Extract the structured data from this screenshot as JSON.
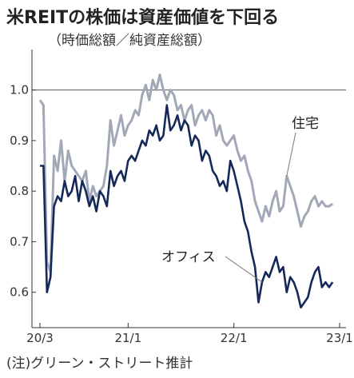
{
  "title": "米REITの株価は資産価値を下回る",
  "subtitle": "（時価総額／純資産総額）",
  "note": "(注)グリーン・ストリート推計",
  "chart_data": {
    "type": "line",
    "title": "米REITの株価は資産価値を下回る",
    "subtitle": "（時価総額／純資産総額）",
    "xlabel": "",
    "ylabel": "",
    "x_ticks": [
      "20/3",
      "21/1",
      "22/1",
      "23/1"
    ],
    "y_ticks": [
      1.0,
      0.9,
      0.8,
      0.7,
      0.6
    ],
    "y_tick_labels": [
      "1.0",
      "0.9",
      "0.8",
      "0.7",
      "0.6"
    ],
    "ylim": [
      0.53,
      1.08
    ],
    "xlim": [
      0,
      34
    ],
    "reference_line": 1.0,
    "grid": false,
    "series": [
      {
        "name": "住宅",
        "color": "#a3a8b8",
        "x": [
          0,
          0.4,
          0.8,
          1.2,
          1.6,
          2.0,
          2.4,
          2.8,
          3.2,
          3.6,
          4.0,
          4.4,
          4.8,
          5.2,
          5.6,
          6.0,
          6.4,
          6.8,
          7.2,
          7.6,
          8.0,
          8.4,
          8.8,
          9.2,
          9.6,
          10.0,
          10.4,
          10.8,
          11.2,
          11.6,
          12.0,
          12.4,
          12.8,
          13.2,
          13.6,
          14.0,
          14.4,
          14.8,
          15.2,
          15.6,
          16.0,
          16.4,
          16.8,
          17.2,
          17.6,
          18.0,
          18.4,
          18.8,
          19.2,
          19.6,
          20.0,
          20.4,
          20.8,
          21.2,
          21.6,
          22.0,
          22.4,
          22.8,
          23.2,
          23.6,
          24.0,
          24.4,
          24.8,
          25.2,
          25.6,
          26.0,
          26.4,
          26.8,
          27.2,
          27.6,
          28.0,
          28.4,
          28.8,
          29.2,
          29.6,
          30.0,
          30.4,
          30.8,
          31.2,
          31.6,
          32.0,
          32.4,
          32.8,
          33.2
        ],
        "values": [
          0.98,
          0.97,
          0.66,
          0.64,
          0.87,
          0.84,
          0.9,
          0.82,
          0.88,
          0.85,
          0.84,
          0.83,
          0.82,
          0.84,
          0.78,
          0.81,
          0.79,
          0.8,
          0.81,
          0.85,
          0.94,
          0.89,
          0.92,
          0.95,
          0.91,
          0.93,
          0.94,
          0.96,
          0.95,
          0.99,
          1.01,
          0.98,
          1.02,
          1.0,
          1.03,
          1.0,
          0.98,
          1.0,
          0.99,
          0.96,
          0.97,
          0.94,
          0.96,
          0.97,
          0.93,
          0.95,
          0.96,
          0.94,
          0.96,
          0.95,
          0.91,
          0.93,
          0.9,
          0.89,
          0.9,
          0.91,
          0.88,
          0.86,
          0.87,
          0.84,
          0.82,
          0.78,
          0.76,
          0.74,
          0.77,
          0.75,
          0.78,
          0.8,
          0.76,
          0.77,
          0.83,
          0.81,
          0.79,
          0.76,
          0.73,
          0.75,
          0.76,
          0.78,
          0.79,
          0.77,
          0.78,
          0.77,
          0.77,
          0.775
        ]
      },
      {
        "name": "オフィス",
        "color": "#14285a",
        "x": [
          0,
          0.4,
          0.8,
          1.2,
          1.6,
          2.0,
          2.4,
          2.8,
          3.2,
          3.6,
          4.0,
          4.4,
          4.8,
          5.2,
          5.6,
          6.0,
          6.4,
          6.8,
          7.2,
          7.6,
          8.0,
          8.4,
          8.8,
          9.2,
          9.6,
          10.0,
          10.4,
          10.8,
          11.2,
          11.6,
          12.0,
          12.4,
          12.8,
          13.2,
          13.6,
          14.0,
          14.4,
          14.8,
          15.2,
          15.6,
          16.0,
          16.4,
          16.8,
          17.2,
          17.6,
          18.0,
          18.4,
          18.8,
          19.2,
          19.6,
          20.0,
          20.4,
          20.8,
          21.2,
          21.6,
          22.0,
          22.4,
          22.8,
          23.2,
          23.6,
          24.0,
          24.4,
          24.8,
          25.2,
          25.6,
          26.0,
          26.4,
          26.8,
          27.2,
          27.6,
          28.0,
          28.4,
          28.8,
          29.2,
          29.6,
          30.0,
          30.4,
          30.8,
          31.2,
          31.6,
          32.0,
          32.4,
          32.8,
          33.2
        ],
        "values": [
          0.85,
          0.85,
          0.6,
          0.63,
          0.77,
          0.79,
          0.78,
          0.82,
          0.79,
          0.8,
          0.83,
          0.78,
          0.82,
          0.8,
          0.77,
          0.79,
          0.76,
          0.8,
          0.79,
          0.77,
          0.84,
          0.81,
          0.83,
          0.84,
          0.82,
          0.86,
          0.87,
          0.86,
          0.88,
          0.9,
          0.89,
          0.92,
          0.91,
          0.93,
          0.9,
          0.91,
          0.97,
          0.92,
          0.93,
          0.95,
          0.92,
          0.94,
          0.93,
          0.89,
          0.91,
          0.9,
          0.86,
          0.88,
          0.87,
          0.84,
          0.83,
          0.81,
          0.82,
          0.8,
          0.86,
          0.84,
          0.81,
          0.78,
          0.74,
          0.72,
          0.68,
          0.65,
          0.58,
          0.62,
          0.64,
          0.63,
          0.65,
          0.67,
          0.64,
          0.65,
          0.6,
          0.63,
          0.62,
          0.6,
          0.57,
          0.58,
          0.59,
          0.62,
          0.64,
          0.65,
          0.61,
          0.62,
          0.61,
          0.62
        ]
      }
    ],
    "labels": [
      {
        "series": "住宅",
        "text": "住宅"
      },
      {
        "series": "オフィス",
        "text": "オフィス"
      }
    ]
  }
}
